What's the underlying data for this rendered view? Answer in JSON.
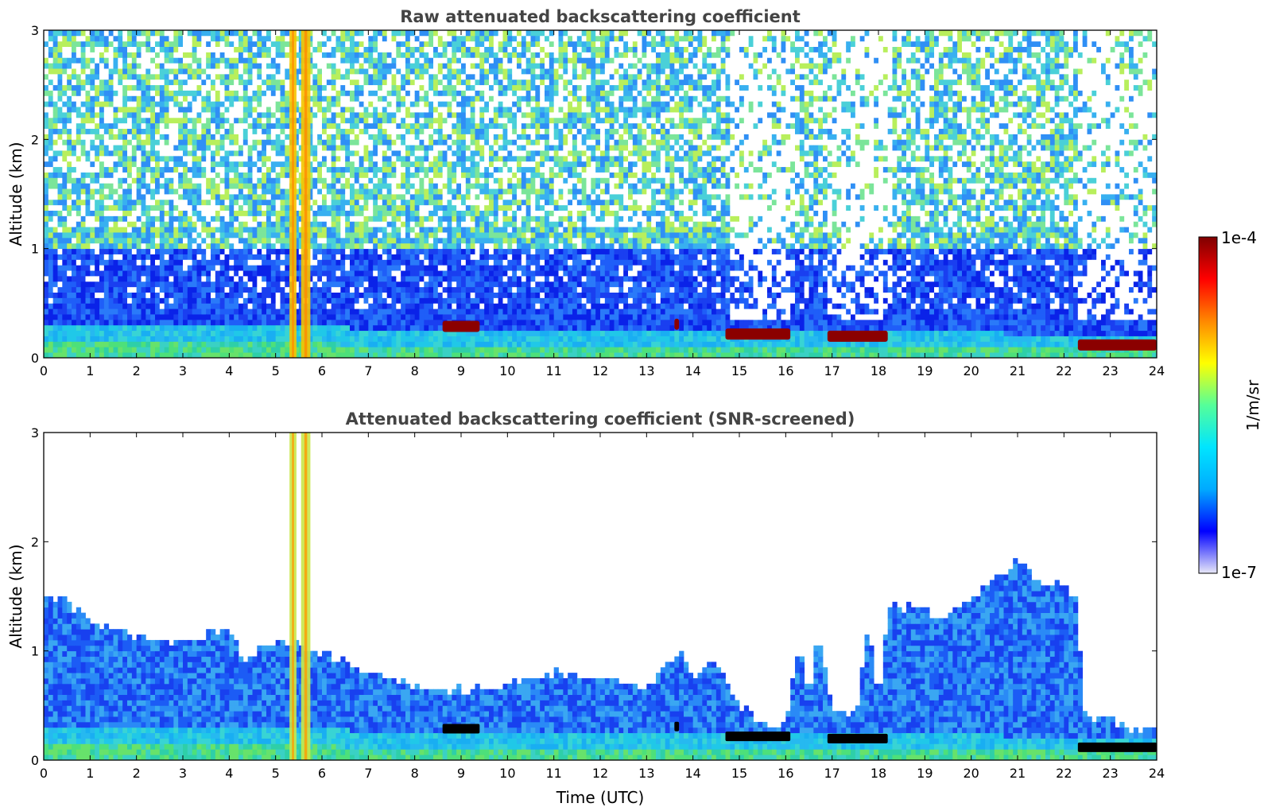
{
  "chart_data": [
    {
      "type": "heatmap",
      "title": "Raw attenuated backscattering coefficient",
      "xlabel": "",
      "ylabel": "Altitude (km)",
      "xlim": [
        0,
        24
      ],
      "ylim": [
        0,
        3
      ],
      "xticks": [
        "0",
        "1",
        "2",
        "3",
        "4",
        "5",
        "6",
        "7",
        "8",
        "9",
        "10",
        "11",
        "12",
        "13",
        "14",
        "15",
        "16",
        "17",
        "18",
        "19",
        "20",
        "21",
        "22",
        "23",
        "24"
      ],
      "yticks": [
        "0",
        "1",
        "2",
        "3"
      ],
      "colormap": "jet",
      "features": {
        "boundary_layer_top_km": [
          [
            0,
            0.3
          ],
          [
            4,
            0.32
          ],
          [
            8,
            0.25
          ],
          [
            12,
            0.25
          ],
          [
            16,
            0.25
          ],
          [
            20,
            0.23
          ],
          [
            24,
            0.2
          ]
        ],
        "low_cloud_segments": [
          {
            "t0": 8.6,
            "t1": 9.4,
            "alt_km": 0.28
          },
          {
            "t0": 13.6,
            "t1": 13.7,
            "alt_km": 0.3
          },
          {
            "t0": 14.7,
            "t1": 16.1,
            "alt_km": 0.21
          },
          {
            "t0": 16.9,
            "t1": 18.2,
            "alt_km": 0.19
          },
          {
            "t0": 22.3,
            "t1": 24.0,
            "alt_km": 0.11
          }
        ],
        "high_signal_columns": [
          {
            "t0": 5.3,
            "t1": 5.45
          },
          {
            "t0": 5.55,
            "t1": 5.75
          }
        ]
      }
    },
    {
      "type": "heatmap",
      "title": "Attenuated backscattering coefficient (SNR-screened)",
      "xlabel": "Time (UTC)",
      "ylabel": "Altitude (km)",
      "xlim": [
        0,
        24
      ],
      "ylim": [
        0,
        3
      ],
      "xticks": [
        "0",
        "1",
        "2",
        "3",
        "4",
        "5",
        "6",
        "7",
        "8",
        "9",
        "10",
        "11",
        "12",
        "13",
        "14",
        "15",
        "16",
        "17",
        "18",
        "19",
        "20",
        "21",
        "22",
        "23",
        "24"
      ],
      "yticks": [
        "0",
        "1",
        "2",
        "3"
      ],
      "colormap": "jet",
      "features": {
        "signal_top_km": [
          [
            0,
            1.55
          ],
          [
            0.5,
            1.45
          ],
          [
            1,
            1.3
          ],
          [
            2,
            1.1
          ],
          [
            3,
            1.1
          ],
          [
            4,
            1.2
          ],
          [
            4.3,
            0.9
          ],
          [
            5,
            1.1
          ],
          [
            6,
            1.0
          ],
          [
            7,
            0.8
          ],
          [
            8,
            0.7
          ],
          [
            9,
            0.65
          ],
          [
            10,
            0.7
          ],
          [
            11,
            0.8
          ],
          [
            12,
            0.75
          ],
          [
            13,
            0.65
          ],
          [
            13.7,
            1.0
          ],
          [
            14,
            0.75
          ],
          [
            14.5,
            0.9
          ],
          [
            15,
            0.5
          ],
          [
            15.5,
            0.35
          ],
          [
            16,
            0.32
          ],
          [
            16.3,
            1.1
          ],
          [
            16.5,
            0.5
          ],
          [
            16.7,
            1.2
          ],
          [
            17,
            0.45
          ],
          [
            17.5,
            0.4
          ],
          [
            17.8,
            1.3
          ],
          [
            18,
            0.45
          ],
          [
            18.2,
            1.4
          ],
          [
            19,
            1.4
          ],
          [
            19.3,
            1.3
          ],
          [
            20,
            1.5
          ],
          [
            21,
            1.85
          ],
          [
            21.5,
            1.6
          ],
          [
            22,
            1.6
          ],
          [
            22.3,
            1.5
          ],
          [
            22.4,
            0.45
          ],
          [
            23,
            0.35
          ],
          [
            24,
            0.25
          ]
        ]
      }
    }
  ],
  "colorbar": {
    "label": "1/m/sr",
    "max_label": "1e-4",
    "min_label": "1e-7",
    "scale": "log",
    "colors": [
      "#e8e8f8",
      "#0000ff",
      "#00aaff",
      "#00e5ff",
      "#55ff99",
      "#ffff00",
      "#ff8800",
      "#ff0000",
      "#7f0000"
    ]
  }
}
